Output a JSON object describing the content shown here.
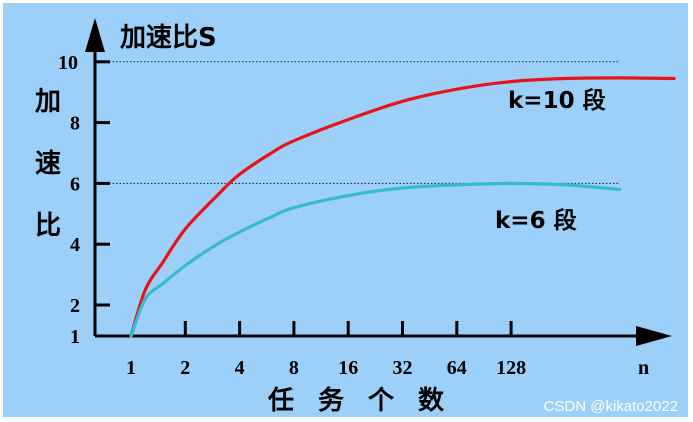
{
  "chart_data": {
    "type": "line",
    "title": "加速比S",
    "ylabel": "加速比",
    "xlabel": "任务个数",
    "x_arrow_label": "n",
    "x_ticks": [
      "1",
      "2",
      "4",
      "8",
      "16",
      "32",
      "64",
      "128"
    ],
    "y_ticks": [
      1,
      2,
      4,
      6,
      8,
      10
    ],
    "ylim": [
      1,
      10.3
    ],
    "reference_lines": [
      10,
      6
    ],
    "series": [
      {
        "name": "k=10 段",
        "color": "#e8121c",
        "x": [
          1,
          1.2,
          1.5,
          2,
          3,
          4,
          6,
          8,
          16,
          32,
          64,
          128,
          256,
          512,
          1024
        ],
        "y": [
          1.0,
          2.5,
          3.4,
          4.5,
          5.6,
          6.3,
          7.0,
          7.4,
          8.1,
          8.7,
          9.1,
          9.35,
          9.45,
          9.47,
          9.45
        ]
      },
      {
        "name": "k=6 段",
        "color": "#35bccc",
        "x": [
          1,
          1.2,
          1.5,
          2,
          3,
          4,
          6,
          8,
          16,
          32,
          64,
          128,
          256,
          512
        ],
        "y": [
          1.0,
          2.2,
          2.7,
          3.3,
          4.0,
          4.4,
          4.9,
          5.2,
          5.6,
          5.85,
          5.95,
          6.0,
          5.95,
          5.8
        ]
      }
    ]
  },
  "watermark": "CSDN @kikato2022"
}
